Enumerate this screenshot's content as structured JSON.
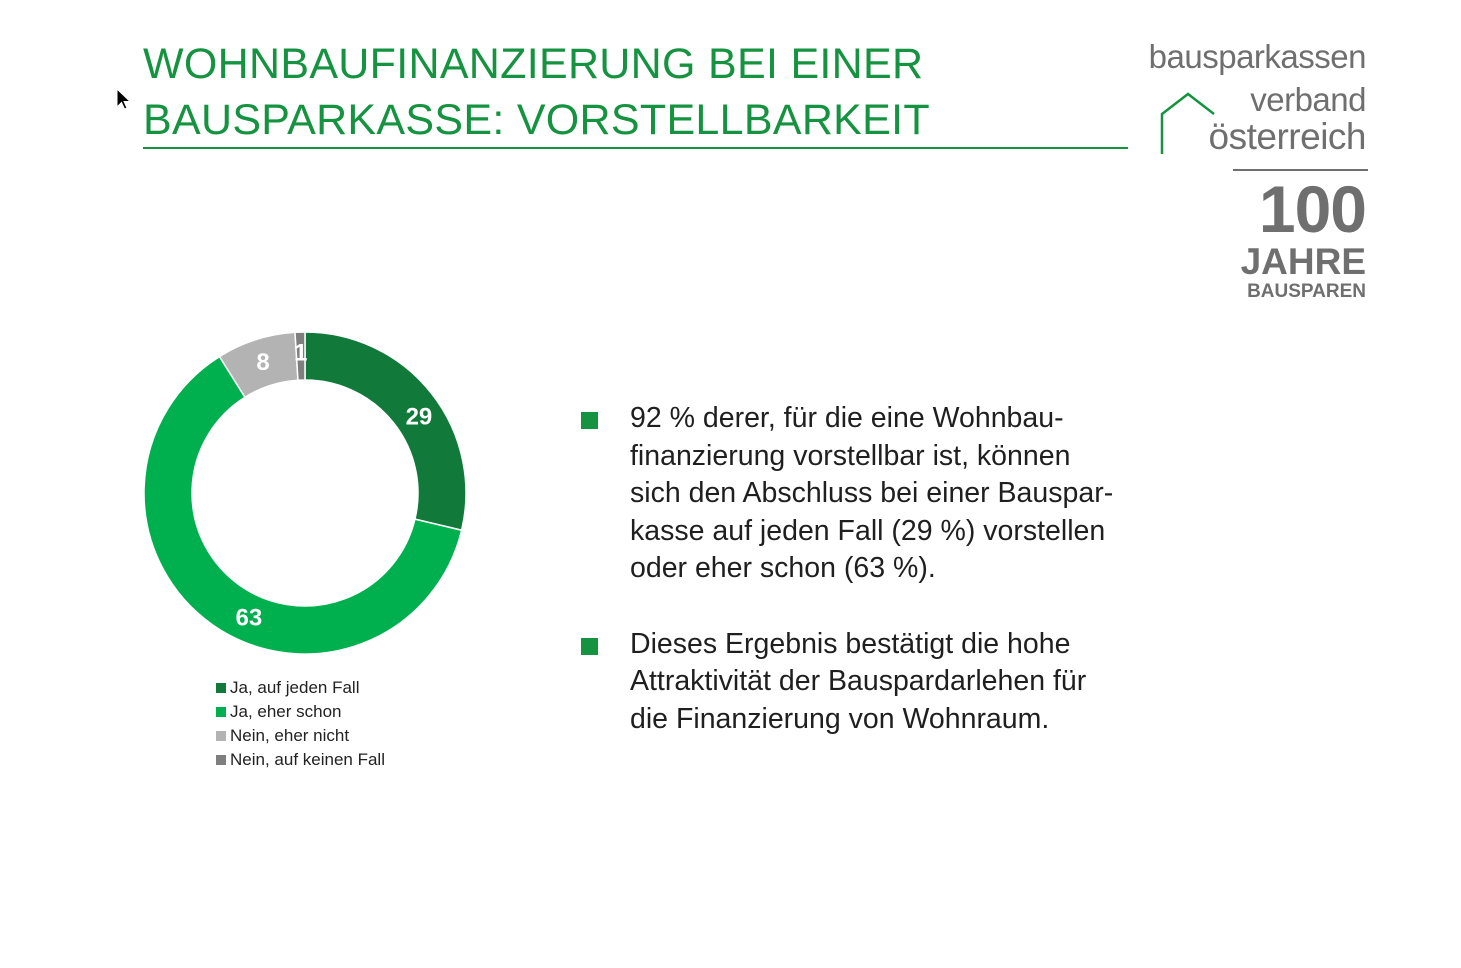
{
  "slide": {
    "title_lines": [
      "WOHNBAUFINANZIERUNG BEI EINER",
      "BAUSPARKASSE: VORSTELLBARKEIT"
    ],
    "accent_color": "#169340"
  },
  "logo": {
    "line1": "bausparkassen",
    "line2": "verband",
    "line3": "österreich",
    "badge_number": "100",
    "badge_word": "JAHRE",
    "badge_sub": "BAUSPAREN",
    "color": "#6f6f6f",
    "icon": "house-outline-icon"
  },
  "chart_data": {
    "type": "pie",
    "variant": "donut",
    "categories": [
      "Ja, auf jeden Fall",
      "Ja, eher schon",
      "Nein, eher nicht",
      "Nein, auf keinen Fall"
    ],
    "values": [
      29,
      63,
      8,
      1
    ],
    "colors": [
      "#117a3a",
      "#00b04f",
      "#b3b3b3",
      "#7f7f7f"
    ],
    "data_labels": [
      "29",
      "63",
      "8",
      "1"
    ],
    "legend_position": "bottom",
    "title": ""
  },
  "bullets": [
    {
      "lines": [
        "92 % derer, für die eine Wohnbau-",
        "finanzierung vorstellbar ist, können",
        "sich den Abschluss bei einer Bauspar-",
        "kasse auf jeden Fall (29 %) vorstellen",
        "oder eher schon (63 %)."
      ]
    },
    {
      "lines": [
        "Dieses Ergebnis bestätigt die hohe",
        "Attraktivität der Bauspardarlehen für",
        "die Finanzierung von Wohnraum."
      ]
    }
  ]
}
